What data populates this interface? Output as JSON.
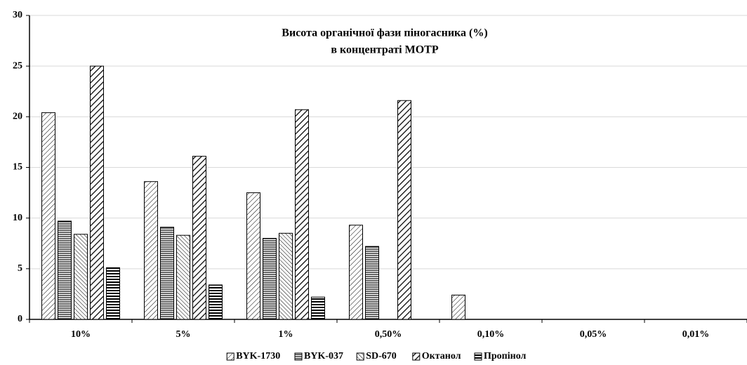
{
  "chart_data": {
    "type": "bar",
    "title": [
      "Висота органічної фази піногасника (%)",
      "в концентраті МОТР"
    ],
    "categories": [
      "10%",
      "5%",
      "1%",
      "0,50%",
      "0,10%",
      "0,05%",
      "0,01%"
    ],
    "series": [
      {
        "name": "BYK-1730",
        "color": "#000000",
        "pattern": "diag-down-thin",
        "values": [
          20.4,
          13.6,
          12.5,
          9.3,
          2.4,
          null,
          null
        ]
      },
      {
        "name": "BYK-037",
        "color": "#000000",
        "pattern": "horizontal-dense",
        "values": [
          9.7,
          9.1,
          8.0,
          7.2,
          null,
          null,
          null
        ]
      },
      {
        "name": "SD-670",
        "color": "#000000",
        "pattern": "diag-up",
        "values": [
          8.4,
          8.3,
          8.5,
          null,
          null,
          null,
          null
        ]
      },
      {
        "name": "Октанол",
        "color": "#000000",
        "pattern": "diag-down-thick",
        "values": [
          25.0,
          16.1,
          20.7,
          21.6,
          null,
          null,
          null
        ]
      },
      {
        "name": "Пропінол",
        "color": "#000000",
        "pattern": "horizontal-thick",
        "values": [
          5.1,
          3.4,
          2.2,
          null,
          null,
          null,
          null
        ]
      }
    ],
    "ylim": [
      0,
      30
    ],
    "yticks": [
      0,
      5,
      10,
      15,
      20,
      25,
      30
    ],
    "grid": true,
    "legend": "bottom"
  }
}
